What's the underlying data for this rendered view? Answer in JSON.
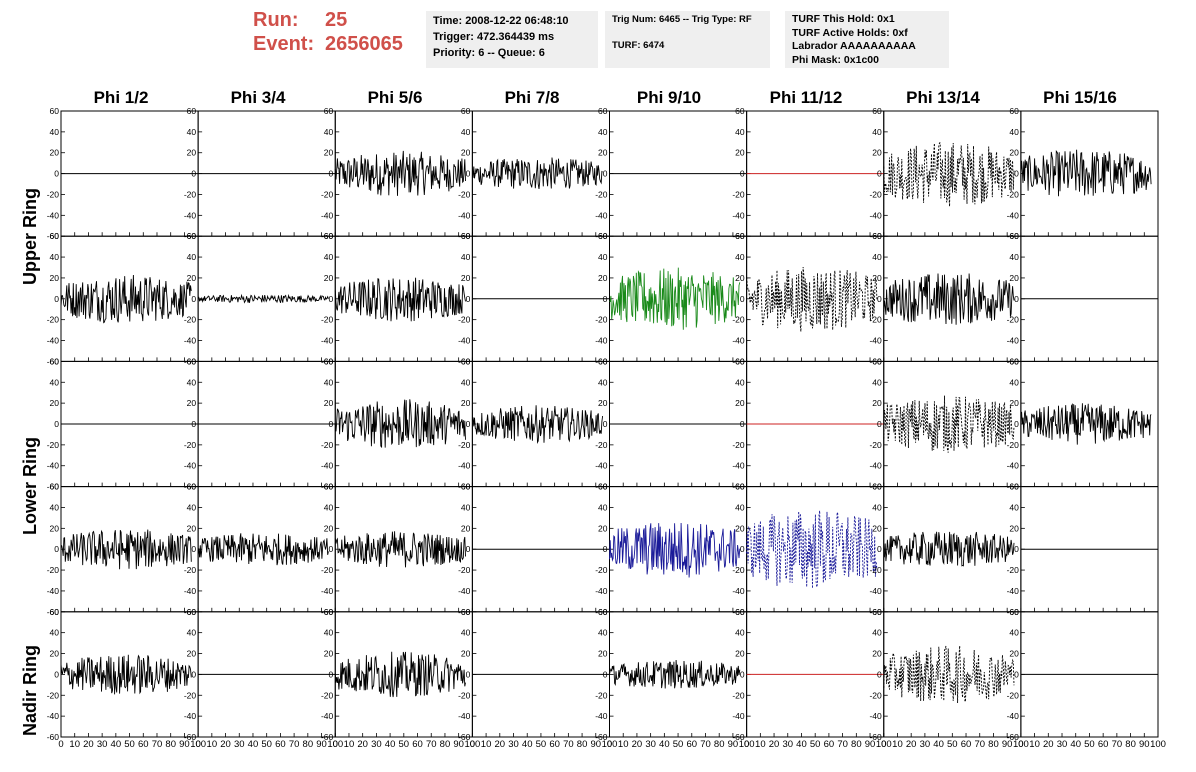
{
  "header": {
    "run_label": "Run:",
    "run_value": "25",
    "event_label": "Event:",
    "event_value": "2656065",
    "time_line": "Time: 2008-12-22 06:48:10",
    "trigger_line": "Trigger: 472.364439 ms",
    "priority_line": "Priority: 6 -- Queue: 6",
    "trig_line": "Trig Num: 6465 -- Trig Type: RF",
    "turf_line": "TURF: 6474",
    "turf_hold_line": "TURF This Hold: 0x1",
    "turf_active_line": "TURF Active Holds: 0xf",
    "labrador_line": "Labrador AAAAAAAAAA",
    "phi_mask_line": "Phi Mask: 0x1c00"
  },
  "columns": [
    "Phi 1/2",
    "Phi 3/4",
    "Phi 5/6",
    "Phi 7/8",
    "Phi 9/10",
    "Phi 11/12",
    "Phi 13/14",
    "Phi 15/16"
  ],
  "rings": [
    "Upper Ring",
    "Lower Ring",
    "Nadir Ring"
  ],
  "colors": {
    "black": "#000000",
    "red": "#cc2222",
    "green": "#1a8a1a",
    "blue": "#1a1a99",
    "ring_label": "#000000",
    "run_text": "#d0504a"
  },
  "chart_data": {
    "type": "line",
    "title": "",
    "xlabel": "",
    "ylabel": "",
    "xlim": [
      0,
      100
    ],
    "ylim": [
      -60,
      60
    ],
    "x_ticks": [
      0,
      10,
      20,
      30,
      40,
      50,
      60,
      70,
      80,
      90,
      100
    ],
    "y_ticks": [
      -60,
      -40,
      -20,
      0,
      20,
      40,
      60
    ],
    "grid": false,
    "rows": 5,
    "cols": 8,
    "row_rings": [
      "Upper Ring",
      "Upper Ring",
      "Lower Ring",
      "Lower Ring",
      "Nadir Ring"
    ],
    "panels": [
      [
        {
          "col": "Phi 1/2",
          "style": "flat",
          "color": "black",
          "amplitude": 0,
          "dashed": false
        },
        {
          "col": "Phi 3/4",
          "style": "flat",
          "color": "black",
          "amplitude": 0,
          "dashed": false
        },
        {
          "col": "Phi 5/6",
          "style": "noise",
          "color": "black",
          "amplitude": 22,
          "dashed": false
        },
        {
          "col": "Phi 7/8",
          "style": "noise",
          "color": "black",
          "amplitude": 16,
          "dashed": false
        },
        {
          "col": "Phi 9/10",
          "style": "flat",
          "color": "black",
          "amplitude": 0,
          "dashed": false
        },
        {
          "col": "Phi 11/12",
          "style": "flat",
          "color": "red",
          "amplitude": 0,
          "dashed": false
        },
        {
          "col": "Phi 13/14",
          "style": "noise",
          "color": "black",
          "amplitude": 32,
          "dashed": true
        },
        {
          "col": "Phi 15/16",
          "style": "noise",
          "color": "black",
          "amplitude": 24,
          "dashed": false
        }
      ],
      [
        {
          "col": "Phi 1/2",
          "style": "noise",
          "color": "black",
          "amplitude": 24,
          "dashed": false
        },
        {
          "col": "Phi 3/4",
          "style": "noise",
          "color": "black",
          "amplitude": 4,
          "dashed": false
        },
        {
          "col": "Phi 5/6",
          "style": "noise",
          "color": "black",
          "amplitude": 22,
          "dashed": false
        },
        {
          "col": "Phi 7/8",
          "style": "flat",
          "color": "black",
          "amplitude": 0,
          "dashed": false
        },
        {
          "col": "Phi 9/10",
          "style": "noise",
          "color": "green",
          "amplitude": 30,
          "dashed": false
        },
        {
          "col": "Phi 11/12",
          "style": "noise",
          "color": "black",
          "amplitude": 32,
          "dashed": true
        },
        {
          "col": "Phi 13/14",
          "style": "noise",
          "color": "black",
          "amplitude": 26,
          "dashed": false
        },
        {
          "col": "Phi 15/16",
          "style": "flat",
          "color": "black",
          "amplitude": 0,
          "dashed": false
        }
      ],
      [
        {
          "col": "Phi 1/2",
          "style": "flat",
          "color": "black",
          "amplitude": 0,
          "dashed": false
        },
        {
          "col": "Phi 3/4",
          "style": "flat",
          "color": "black",
          "amplitude": 0,
          "dashed": false
        },
        {
          "col": "Phi 5/6",
          "style": "noise",
          "color": "black",
          "amplitude": 24,
          "dashed": false
        },
        {
          "col": "Phi 7/8",
          "style": "noise",
          "color": "black",
          "amplitude": 18,
          "dashed": false
        },
        {
          "col": "Phi 9/10",
          "style": "flat",
          "color": "black",
          "amplitude": 0,
          "dashed": false
        },
        {
          "col": "Phi 11/12",
          "style": "flat",
          "color": "red",
          "amplitude": 0,
          "dashed": false
        },
        {
          "col": "Phi 13/14",
          "style": "noise",
          "color": "black",
          "amplitude": 28,
          "dashed": true
        },
        {
          "col": "Phi 15/16",
          "style": "noise",
          "color": "black",
          "amplitude": 20,
          "dashed": false
        }
      ],
      [
        {
          "col": "Phi 1/2",
          "style": "noise",
          "color": "black",
          "amplitude": 20,
          "dashed": false
        },
        {
          "col": "Phi 3/4",
          "style": "noise",
          "color": "black",
          "amplitude": 16,
          "dashed": false
        },
        {
          "col": "Phi 5/6",
          "style": "noise",
          "color": "black",
          "amplitude": 18,
          "dashed": false
        },
        {
          "col": "Phi 7/8",
          "style": "flat",
          "color": "black",
          "amplitude": 0,
          "dashed": false
        },
        {
          "col": "Phi 9/10",
          "style": "noise",
          "color": "blue",
          "amplitude": 28,
          "dashed": false
        },
        {
          "col": "Phi 11/12",
          "style": "noise",
          "color": "blue",
          "amplitude": 40,
          "dashed": true
        },
        {
          "col": "Phi 13/14",
          "style": "noise",
          "color": "black",
          "amplitude": 18,
          "dashed": false
        },
        {
          "col": "Phi 15/16",
          "style": "flat",
          "color": "black",
          "amplitude": 0,
          "dashed": false
        }
      ],
      [
        {
          "col": "Phi 1/2",
          "style": "noise",
          "color": "black",
          "amplitude": 20,
          "dashed": false
        },
        {
          "col": "Phi 3/4",
          "style": "flat",
          "color": "black",
          "amplitude": 0,
          "dashed": false
        },
        {
          "col": "Phi 5/6",
          "style": "noise",
          "color": "black",
          "amplitude": 22,
          "dashed": false
        },
        {
          "col": "Phi 7/8",
          "style": "flat",
          "color": "black",
          "amplitude": 0,
          "dashed": false
        },
        {
          "col": "Phi 9/10",
          "style": "noise",
          "color": "black",
          "amplitude": 14,
          "dashed": false
        },
        {
          "col": "Phi 11/12",
          "style": "flat",
          "color": "red",
          "amplitude": 0,
          "dashed": false
        },
        {
          "col": "Phi 13/14",
          "style": "noise",
          "color": "black",
          "amplitude": 28,
          "dashed": true
        },
        {
          "col": "Phi 15/16",
          "style": "flat",
          "color": "black",
          "amplitude": 0,
          "dashed": false
        }
      ]
    ]
  }
}
